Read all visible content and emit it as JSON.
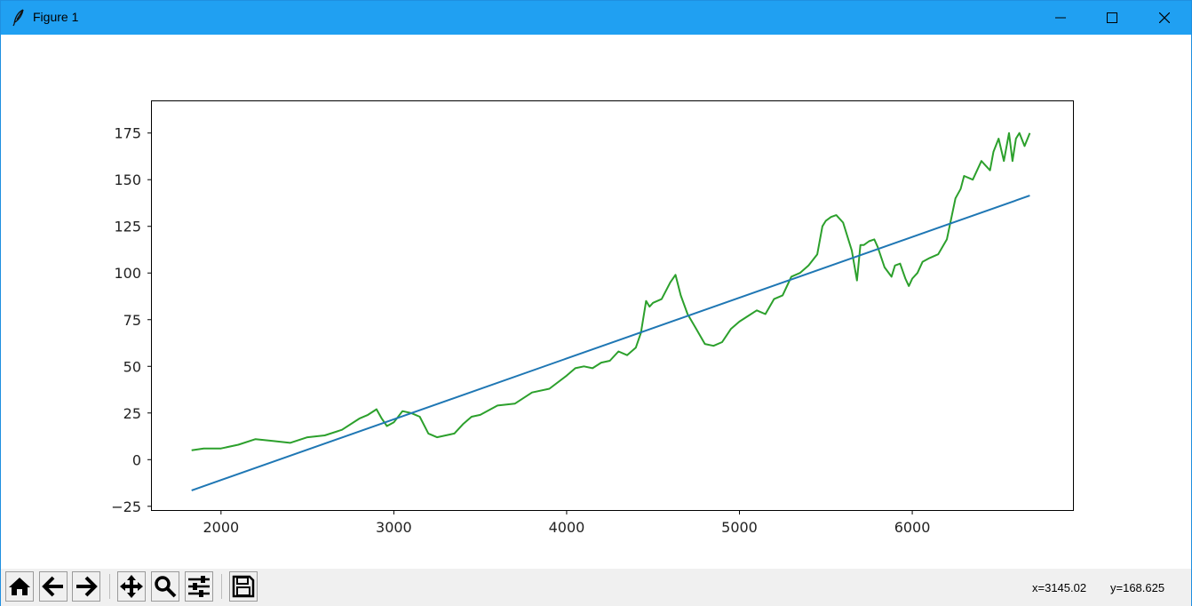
{
  "window": {
    "title": "Figure 1"
  },
  "titlebar_color": "#20a0f2",
  "icons": {
    "app": "feather-icon",
    "minimize": "minimize-icon",
    "maximize": "maximize-icon",
    "close": "close-icon",
    "home": "home-icon",
    "back": "arrow-left-icon",
    "forward": "arrow-right-icon",
    "pan": "move-icon",
    "zoom": "magnifier-icon",
    "configure": "sliders-icon",
    "save": "floppy-disk-icon"
  },
  "status": {
    "x_readout": "x=3145.02",
    "y_readout": "y=168.625"
  },
  "chart_data": {
    "type": "line",
    "title": "",
    "xlabel": "",
    "ylabel": "",
    "xlim": [
      1600,
      6930
    ],
    "ylim": [
      -27,
      192
    ],
    "x_ticks": [
      2000,
      3000,
      4000,
      5000,
      6000
    ],
    "y_ticks": [
      -25,
      0,
      25,
      50,
      75,
      100,
      125,
      150,
      175
    ],
    "grid": false,
    "legend": "none",
    "series": [
      {
        "color": "#2ca02c",
        "x": [
          1830,
          1900,
          2000,
          2100,
          2200,
          2300,
          2400,
          2500,
          2600,
          2700,
          2800,
          2850,
          2900,
          2930,
          2960,
          3000,
          3050,
          3100,
          3150,
          3200,
          3250,
          3300,
          3350,
          3400,
          3450,
          3500,
          3600,
          3700,
          3800,
          3900,
          4000,
          4050,
          4100,
          4150,
          4200,
          4250,
          4300,
          4350,
          4400,
          4430,
          4460,
          4480,
          4500,
          4550,
          4600,
          4630,
          4660,
          4700,
          4750,
          4800,
          4850,
          4900,
          4950,
          5000,
          5050,
          5100,
          5150,
          5200,
          5250,
          5300,
          5350,
          5400,
          5450,
          5480,
          5500,
          5530,
          5560,
          5600,
          5650,
          5680,
          5700,
          5720,
          5750,
          5780,
          5800,
          5840,
          5880,
          5900,
          5930,
          5960,
          5980,
          6000,
          6030,
          6060,
          6100,
          6150,
          6200,
          6250,
          6280,
          6300,
          6350,
          6400,
          6450,
          6470,
          6500,
          6530,
          6560,
          6580,
          6600,
          6620,
          6650,
          6680
        ],
        "values": [
          5,
          6,
          6,
          8,
          11,
          10,
          9,
          12,
          13,
          16,
          22,
          24,
          27,
          22,
          18,
          20,
          26,
          25,
          23,
          14,
          12,
          13,
          14,
          19,
          23,
          24,
          29,
          30,
          36,
          38,
          45,
          49,
          50,
          49,
          52,
          53,
          58,
          56,
          60,
          68,
          85,
          82,
          84,
          86,
          95,
          99,
          88,
          78,
          70,
          62,
          61,
          63,
          70,
          74,
          77,
          80,
          78,
          86,
          88,
          98,
          100,
          104,
          110,
          125,
          128,
          130,
          131,
          127,
          112,
          96,
          115,
          115,
          117,
          118,
          114,
          103,
          98,
          104,
          105,
          97,
          93,
          97,
          100,
          106,
          108,
          110,
          118,
          140,
          145,
          152,
          150,
          160,
          155,
          165,
          172,
          160,
          175,
          160,
          172,
          175,
          168,
          175
        ]
      },
      {
        "color": "#1f77b4",
        "x": [
          1830,
          6680
        ],
        "values": [
          -16.5,
          141.5
        ]
      }
    ]
  }
}
